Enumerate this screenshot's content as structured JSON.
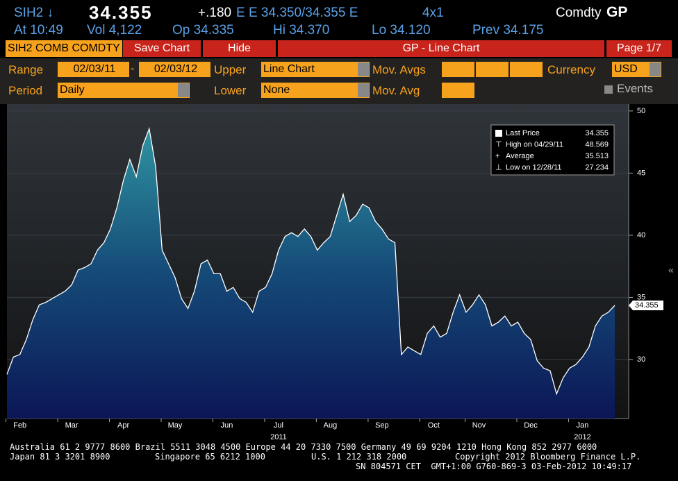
{
  "header": {
    "ticker": "SIH2 ↓",
    "price": "34.355",
    "change": "+.180",
    "quote": "E E 34.350/34.355 E",
    "size": "4x1",
    "section": "Comdty",
    "function": "GP",
    "time": "At 10:49",
    "volume": "Vol 4,122",
    "open": "Op 34.335",
    "high": "Hi 34.370",
    "low": "Lo 34.120",
    "prev": "Prev 34.175"
  },
  "toolbar": {
    "security": "SIH2 COMB COMDTY",
    "save": "Save Chart",
    "hide": "Hide",
    "title": "GP - Line Chart",
    "page": "Page 1/7"
  },
  "controls": {
    "range_label": "Range",
    "start": "02/03/11",
    "dash": "-",
    "end": "02/03/12",
    "upper_label": "Upper",
    "upper": "Line Chart",
    "mov_avgs_label": "Mov. Avgs",
    "currency_label": "Currency",
    "currency": "USD",
    "period_label": "Period",
    "period": "Daily",
    "lower_label": "Lower",
    "lower": "None",
    "mov_avg_label": "Mov. Avg",
    "events": "Events"
  },
  "chart_data": {
    "type": "line",
    "categories": [
      null,
      null,
      "Feb",
      null,
      null,
      null,
      null,
      null,
      null,
      null,
      "Mar",
      null,
      null,
      null,
      null,
      null,
      null,
      null,
      "Apr",
      null,
      null,
      null,
      null,
      null,
      null,
      null,
      "May",
      null,
      null,
      null,
      null,
      null,
      null,
      null,
      "Jun",
      null,
      null,
      null,
      null,
      null,
      null,
      null,
      "Jul",
      null,
      null,
      null,
      null,
      null,
      null,
      null,
      "Aug",
      null,
      null,
      null,
      null,
      null,
      null,
      null,
      "Sep",
      null,
      null,
      null,
      null,
      null,
      null,
      null,
      "Oct",
      null,
      null,
      null,
      null,
      null,
      null,
      "Nov",
      null,
      null,
      null,
      null,
      null,
      null,
      null,
      "Dec",
      null,
      null,
      null,
      null,
      null,
      null,
      null,
      "Jan",
      null,
      null,
      null,
      null,
      null
    ],
    "year_labels": [
      {
        "label": "2011",
        "month": "Jul"
      },
      {
        "label": "2012",
        "month": "Jan"
      }
    ],
    "series": [
      {
        "name": "Last Price",
        "color": "#ffffff",
        "values": [
          28.8,
          30.2,
          30.4,
          31.6,
          33.2,
          34.4,
          34.6,
          34.9,
          35.2,
          35.5,
          36.0,
          37.2,
          37.4,
          37.7,
          38.8,
          39.4,
          40.5,
          42.2,
          44.4,
          46.1,
          44.7,
          47.2,
          48.569,
          45.5,
          38.8,
          37.7,
          36.6,
          34.9,
          34.1,
          35.5,
          37.7,
          38.0,
          36.9,
          36.9,
          35.5,
          35.8,
          34.9,
          34.6,
          33.8,
          35.5,
          35.8,
          36.9,
          38.8,
          39.9,
          40.2,
          39.9,
          40.5,
          39.9,
          38.8,
          39.4,
          39.9,
          41.6,
          43.3,
          41.1,
          41.6,
          42.5,
          42.2,
          41.1,
          40.5,
          39.7,
          39.4,
          30.4,
          31.0,
          30.7,
          30.4,
          32.1,
          32.7,
          31.8,
          32.1,
          33.8,
          35.2,
          33.8,
          34.4,
          35.2,
          34.4,
          32.7,
          33.0,
          33.5,
          32.7,
          33.0,
          32.1,
          31.6,
          29.9,
          29.3,
          29.1,
          27.234,
          28.5,
          29.3,
          29.6,
          30.2,
          31.0,
          32.7,
          33.5,
          33.8,
          34.355
        ]
      }
    ],
    "ylim": [
      25.25,
      50.55
    ],
    "yticks": [
      30,
      35,
      40,
      45,
      50
    ],
    "legend": [
      {
        "label": "Last Price",
        "value": 34.355
      },
      {
        "label": "High on 04/29/11",
        "value": 48.569
      },
      {
        "label": "Average",
        "value": 35.513
      },
      {
        "label": "Low on 12/28/11",
        "value": 27.234
      }
    ]
  },
  "footer": {
    "line1": "Australia 61 2 9777 8600 Brazil 5511 3048 4500 Europe 44 20 7330 7500 Germany 49 69 9204 1210 Hong Kong 852 2977 6000",
    "line2a": "Japan 81 3 3201 8900",
    "line2b": "Singapore 65 6212 1000",
    "line2c": "U.S. 1 212 318 2000",
    "line2d": "Copyright 2012 Bloomberg Finance L.P.",
    "line3": "SN 804571 CET  GMT+1:00 G760-869-3 03-Feb-2012 10:49:17"
  }
}
